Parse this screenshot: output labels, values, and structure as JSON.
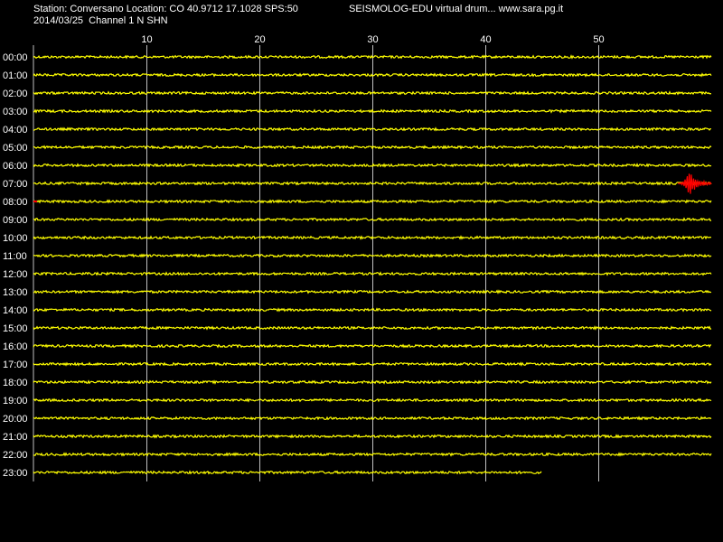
{
  "header": {
    "station_line": "Station: Conversano Location: CO 40.9712 17.1028 SPS:50",
    "brand_line": "SEISMOLOG-EDU virtual drum... www.sara.pg.it",
    "date_line": "2014/03/25  Channel 1 N SHN"
  },
  "chart_data": {
    "type": "line",
    "title": "",
    "xlabel": "",
    "ylabel": "",
    "x_ticks": [
      10,
      20,
      30,
      40,
      50
    ],
    "xlim": [
      0,
      60
    ],
    "grid": "vertical lines at minute ticks",
    "rows": [
      "00:00",
      "01:00",
      "02:00",
      "03:00",
      "04:00",
      "05:00",
      "06:00",
      "07:00",
      "08:00",
      "09:00",
      "10:00",
      "11:00",
      "12:00",
      "13:00",
      "14:00",
      "15:00",
      "16:00",
      "17:00",
      "18:00",
      "19:00",
      "20:00",
      "21:00",
      "22:00",
      "23:00"
    ],
    "last_row_end_minute": 45,
    "events": [
      {
        "row": "07:00",
        "minute": 58.0
      }
    ],
    "colors": {
      "background": "#000000",
      "trace": "#ffff00",
      "event_trace": "#ff0000",
      "grid": "#c0c0c0",
      "text": "#ffffff"
    }
  }
}
